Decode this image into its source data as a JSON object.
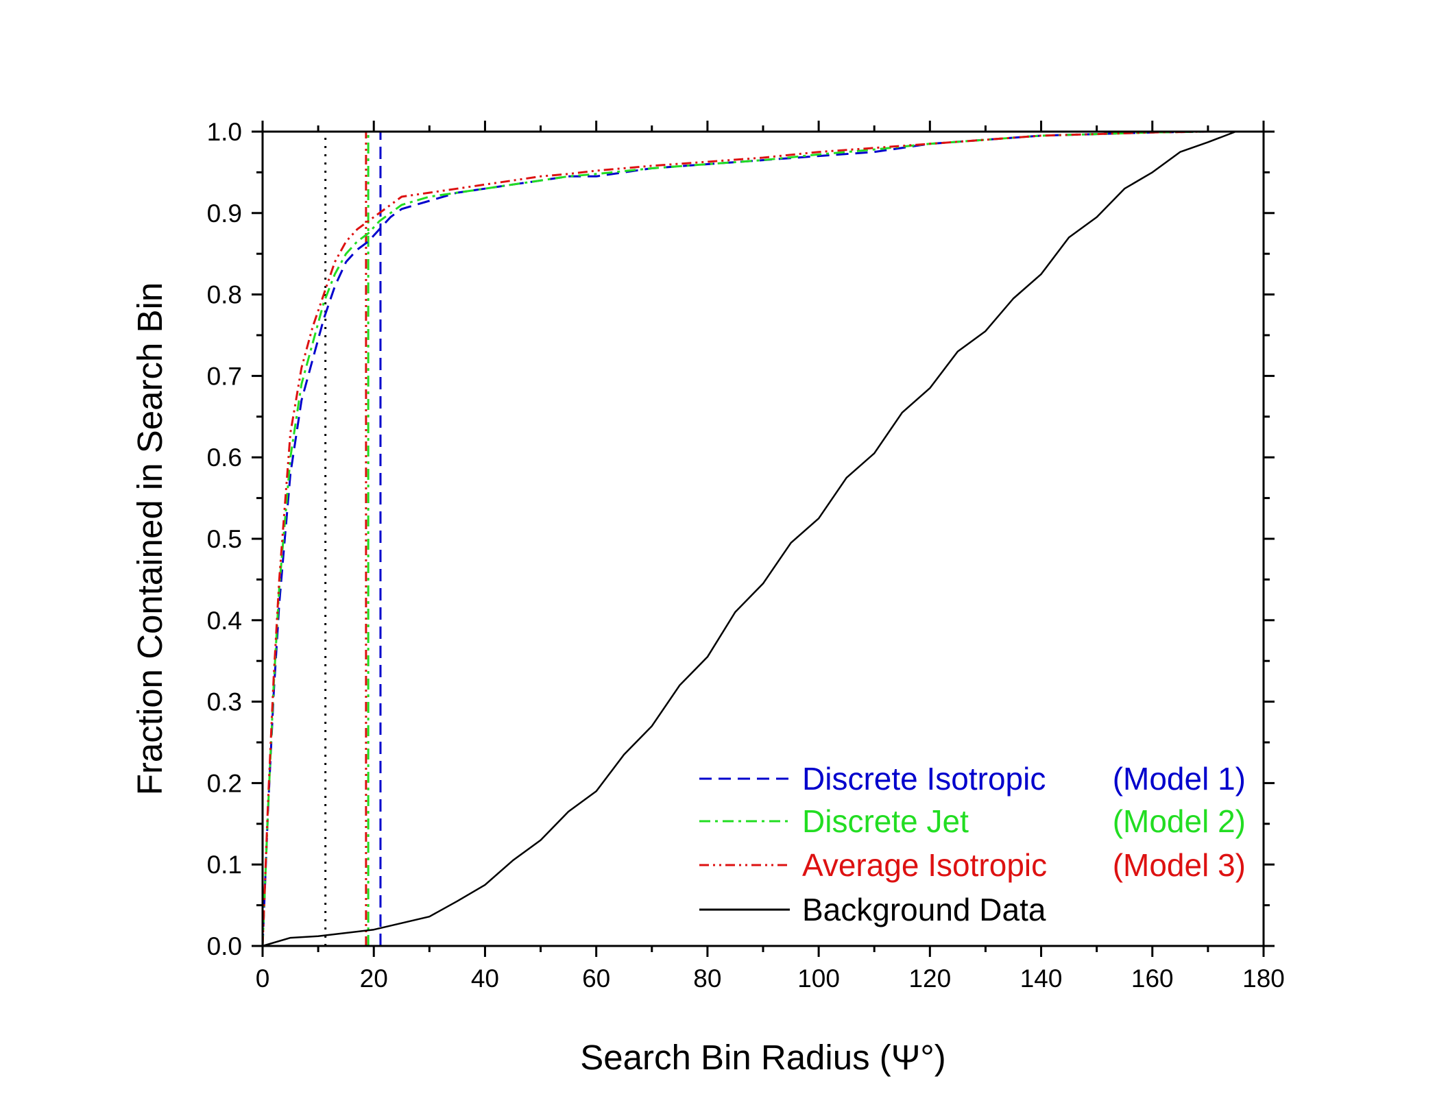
{
  "chart_data": {
    "type": "line",
    "xlabel": "Search Bin Radius (Ψ°)",
    "ylabel": "Fraction Contained in Search Bin",
    "xlim": [
      0,
      180
    ],
    "ylim": [
      0,
      1.0
    ],
    "xticks": [
      "0",
      "20",
      "40",
      "60",
      "80",
      "100",
      "120",
      "140",
      "160",
      "180"
    ],
    "yticks": [
      "0.0",
      "0.1",
      "0.2",
      "0.3",
      "0.4",
      "0.5",
      "0.6",
      "0.7",
      "0.8",
      "0.9",
      "1.0"
    ],
    "grid": false,
    "legend_position": "bottom-right",
    "series": [
      {
        "name": "Discrete Isotropic",
        "model": "(Model 1)",
        "color": "#0000cc",
        "style": "dash",
        "x": [
          0,
          1,
          2,
          3,
          4,
          5,
          7,
          9,
          11,
          13,
          15,
          17,
          19,
          21,
          23,
          25,
          30,
          35,
          40,
          45,
          50,
          55,
          60,
          70,
          80,
          90,
          100,
          110,
          120,
          130,
          140,
          150,
          160,
          170,
          175,
          180
        ],
        "y": [
          0,
          0.17,
          0.31,
          0.42,
          0.5,
          0.58,
          0.67,
          0.72,
          0.77,
          0.81,
          0.84,
          0.855,
          0.865,
          0.88,
          0.895,
          0.905,
          0.915,
          0.925,
          0.93,
          0.935,
          0.94,
          0.945,
          0.945,
          0.955,
          0.96,
          0.965,
          0.97,
          0.975,
          0.985,
          0.99,
          0.995,
          0.997,
          0.999,
          1.0,
          1.0,
          1.0
        ]
      },
      {
        "name": "Discrete Jet",
        "model": "(Model 2)",
        "color": "#22dd22",
        "style": "dash-dot",
        "x": [
          0,
          1,
          2,
          3,
          4,
          5,
          7,
          9,
          11,
          13,
          15,
          17,
          19,
          21,
          23,
          25,
          30,
          35,
          40,
          45,
          50,
          55,
          60,
          70,
          80,
          90,
          100,
          110,
          120,
          130,
          140,
          150,
          160,
          170,
          175,
          180
        ],
        "y": [
          0,
          0.17,
          0.32,
          0.44,
          0.52,
          0.6,
          0.69,
          0.74,
          0.79,
          0.825,
          0.85,
          0.865,
          0.875,
          0.89,
          0.9,
          0.91,
          0.92,
          0.925,
          0.93,
          0.935,
          0.94,
          0.945,
          0.948,
          0.955,
          0.96,
          0.965,
          0.972,
          0.978,
          0.985,
          0.99,
          0.995,
          0.997,
          0.999,
          1.0,
          1.0,
          1.0
        ]
      },
      {
        "name": "Average Isotropic",
        "model": "(Model 3)",
        "color": "#dd1111",
        "style": "dash-dot-dot",
        "x": [
          0,
          1,
          2,
          3,
          4,
          5,
          7,
          9,
          11,
          13,
          15,
          17,
          19,
          21,
          23,
          25,
          30,
          35,
          40,
          45,
          50,
          55,
          60,
          70,
          80,
          90,
          100,
          110,
          120,
          130,
          140,
          150,
          160,
          170,
          175,
          180
        ],
        "y": [
          0,
          0.18,
          0.33,
          0.45,
          0.54,
          0.63,
          0.71,
          0.76,
          0.8,
          0.84,
          0.865,
          0.88,
          0.89,
          0.9,
          0.91,
          0.92,
          0.925,
          0.93,
          0.935,
          0.94,
          0.945,
          0.948,
          0.952,
          0.958,
          0.963,
          0.968,
          0.975,
          0.98,
          0.985,
          0.99,
          0.995,
          0.997,
          0.999,
          1.0,
          1.0,
          1.0
        ]
      },
      {
        "name": "Background Data",
        "color": "#000000",
        "style": "solid",
        "x": [
          0,
          5,
          10,
          15,
          20,
          25,
          30,
          35,
          40,
          45,
          50,
          55,
          60,
          65,
          70,
          75,
          80,
          85,
          90,
          95,
          100,
          105,
          110,
          115,
          120,
          125,
          130,
          135,
          140,
          145,
          150,
          155,
          160,
          165,
          170,
          175,
          180
        ],
        "y": [
          0,
          0.01,
          0.012,
          0.016,
          0.02,
          0.028,
          0.036,
          0.055,
          0.075,
          0.105,
          0.13,
          0.165,
          0.19,
          0.235,
          0.27,
          0.32,
          0.355,
          0.41,
          0.445,
          0.495,
          0.525,
          0.575,
          0.605,
          0.655,
          0.685,
          0.73,
          0.755,
          0.795,
          0.825,
          0.87,
          0.895,
          0.93,
          0.95,
          0.975,
          0.987,
          1.0,
          1.0
        ]
      }
    ],
    "vertical_lines": [
      {
        "x": 11.3,
        "color": "#000000",
        "style": "dot"
      },
      {
        "x": 18.6,
        "color": "#dd1111",
        "style": "dash-dot-dot"
      },
      {
        "x": 19.0,
        "color": "#22dd22",
        "style": "dash-dot"
      },
      {
        "x": 21.2,
        "color": "#0000cc",
        "style": "dash"
      }
    ]
  }
}
